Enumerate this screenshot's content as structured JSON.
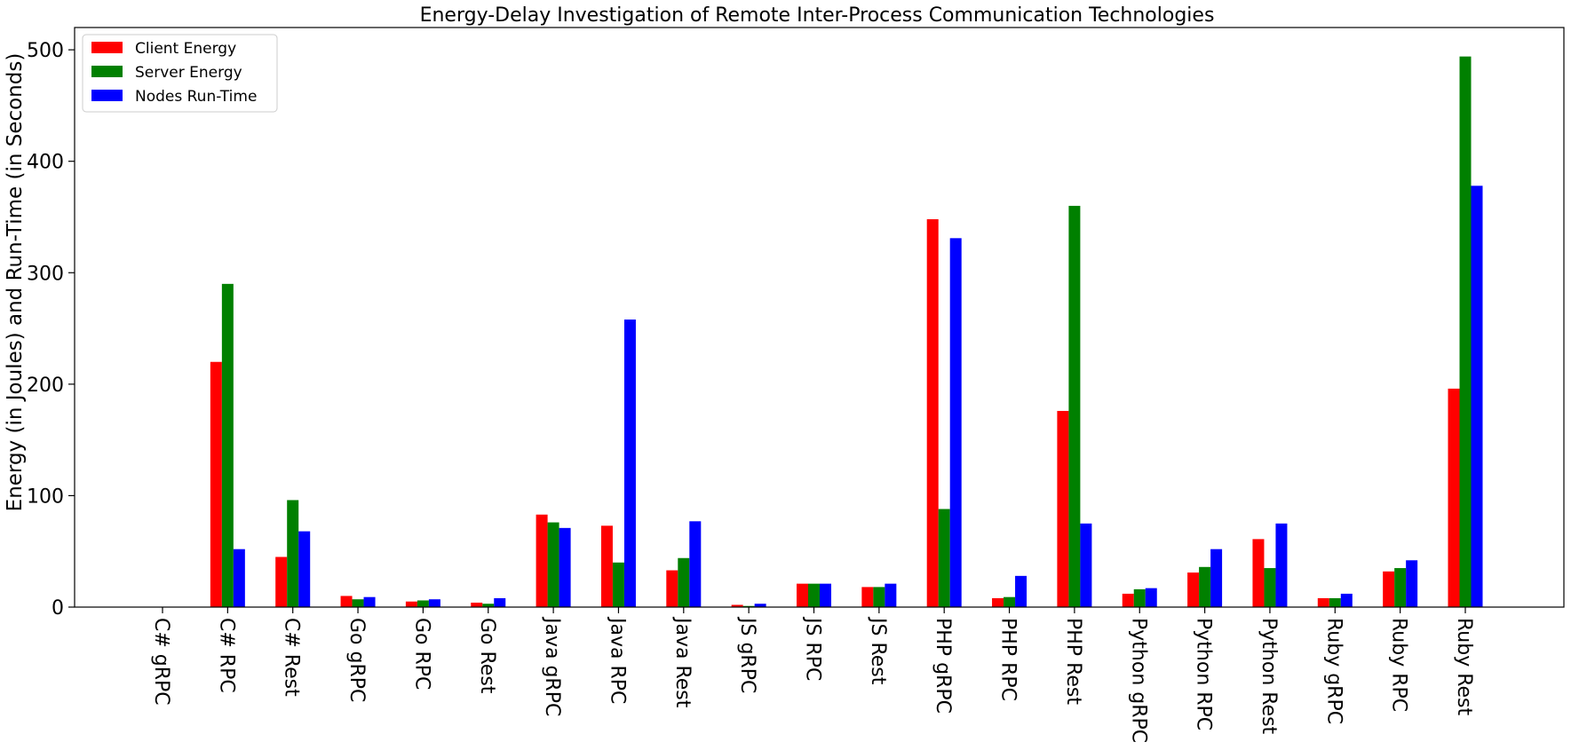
{
  "chart_data": {
    "type": "bar",
    "title": "Energy-Delay Investigation of Remote Inter-Process Communication Technologies",
    "xlabel": "",
    "ylabel": "Energy (in Joules) and Run-Time (in Seconds)",
    "ylim": [
      0,
      520
    ],
    "yticks": [
      0,
      100,
      200,
      300,
      400,
      500
    ],
    "grid": false,
    "legend_position": "top-left",
    "categories": [
      "C# gRPC",
      "C# RPC",
      "C# Rest",
      "Go gRPC",
      "Go RPC",
      "Go Rest",
      "Java gRPC",
      "Java RPC",
      "Java Rest",
      "JS gRPC",
      "JS RPC",
      "JS Rest",
      "PHP gRPC",
      "PHP RPC",
      "PHP Rest",
      "Python gRPC",
      "Python RPC",
      "Python Rest",
      "Ruby gRPC",
      "Ruby RPC",
      "Ruby Rest"
    ],
    "series": [
      {
        "name": "Client Energy",
        "color": "#ff0000",
        "values": [
          0,
          220,
          45,
          10,
          5,
          4,
          83,
          73,
          33,
          2,
          21,
          18,
          348,
          8,
          176,
          12,
          31,
          61,
          8,
          32,
          196
        ]
      },
      {
        "name": "Server Energy",
        "color": "#008000",
        "values": [
          0,
          290,
          96,
          7,
          6,
          3,
          76,
          40,
          44,
          1,
          21,
          18,
          88,
          9,
          360,
          16,
          36,
          35,
          8,
          35,
          494
        ]
      },
      {
        "name": "Nodes Run-Time",
        "color": "#0000ff",
        "values": [
          0,
          52,
          68,
          9,
          7,
          8,
          71,
          258,
          77,
          3,
          21,
          21,
          331,
          28,
          75,
          17,
          52,
          75,
          12,
          42,
          378
        ]
      }
    ]
  }
}
